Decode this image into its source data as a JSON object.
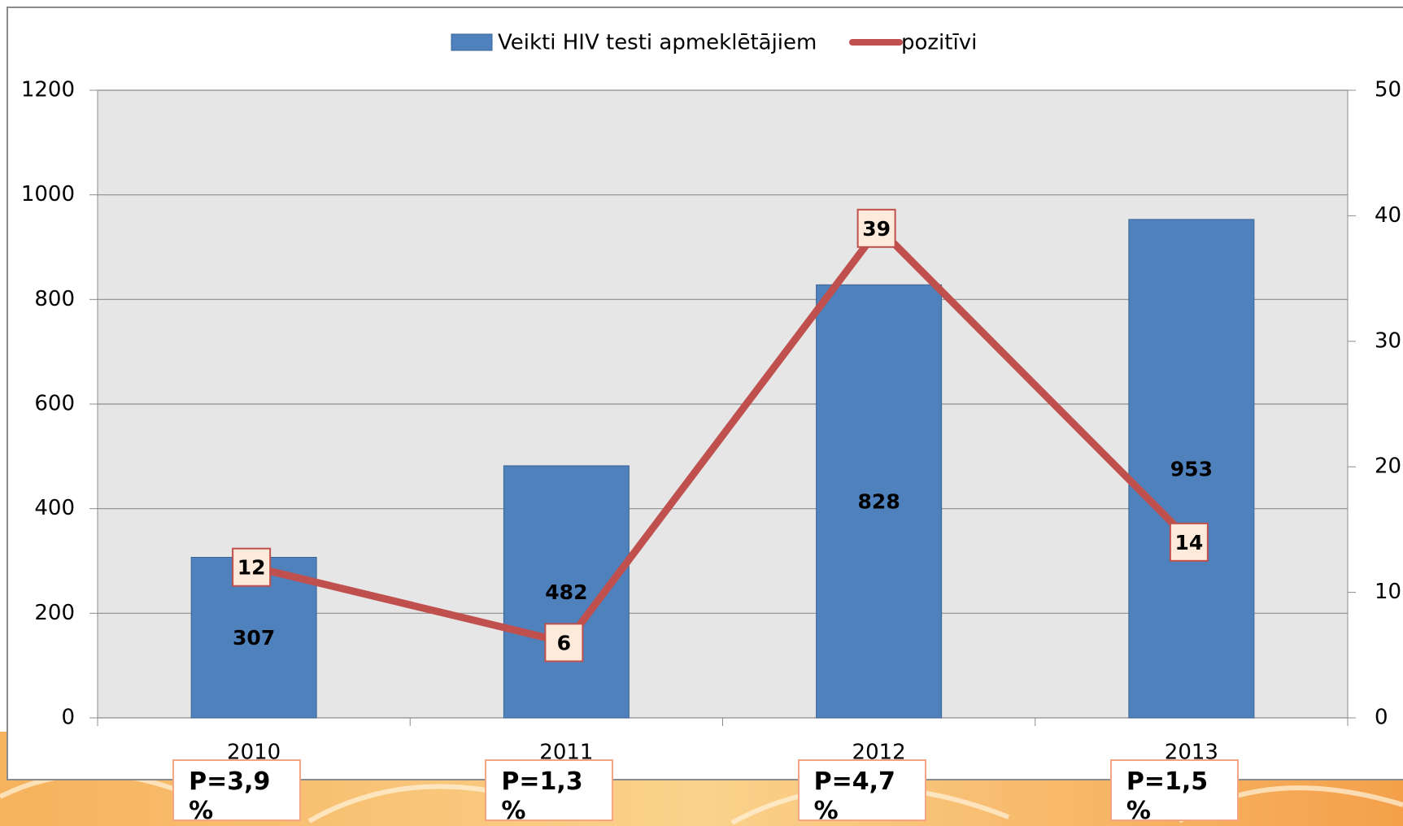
{
  "chart_data": {
    "type": "bar_line",
    "categories": [
      "2010",
      "2011",
      "2012",
      "2013"
    ],
    "series": [
      {
        "name": "Veikti HIV testi apmeklētājiem",
        "type": "bar",
        "color": "#4f81bd",
        "values": [
          307,
          482,
          828,
          953
        ]
      },
      {
        "name": "pozitīvi",
        "type": "line",
        "color": "#c0504d",
        "axis": "y2",
        "values": [
          12,
          6,
          39,
          14
        ]
      }
    ],
    "annotations": [
      "P=3,9 %",
      "P=1,3 %",
      "P=4,7 %",
      "P=1,5 %"
    ],
    "ylim": [
      0,
      1200
    ],
    "yticks": [
      0,
      200,
      400,
      600,
      800,
      1000,
      1200
    ],
    "y2lim": [
      0,
      50
    ],
    "y2ticks": [
      0,
      10,
      20,
      30,
      40,
      50
    ],
    "grid": true,
    "legend": "top"
  }
}
